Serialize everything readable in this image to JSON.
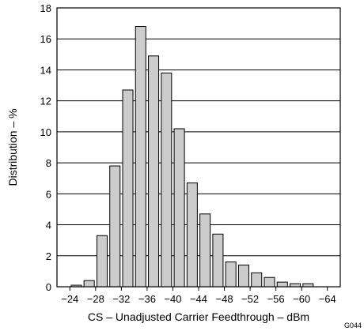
{
  "chart_data": {
    "type": "bar",
    "title": "",
    "xlabel": "CS – Unadjusted Carrier Feedthrough – dBm",
    "ylabel": "Distribution – %",
    "xlim": [
      -22,
      -66
    ],
    "ylim": [
      0,
      18
    ],
    "grid": "horizontal",
    "x_ticks": [
      -24,
      -28,
      -32,
      -36,
      -40,
      -44,
      -48,
      -52,
      -56,
      -60,
      -64
    ],
    "x_tick_labels": [
      "−24",
      "−28",
      "−32",
      "−36",
      "−40",
      "−44",
      "−48",
      "−52",
      "−56",
      "−60",
      "−64"
    ],
    "y_ticks": [
      0,
      2,
      4,
      6,
      8,
      10,
      12,
      14,
      16,
      18
    ],
    "y_tick_labels": [
      "0",
      "2",
      "4",
      "6",
      "8",
      "10",
      "12",
      "14",
      "16",
      "18"
    ],
    "bar_width": 1.6,
    "bar_color": "#cccccc",
    "series": [
      {
        "x": [
          -25,
          -27,
          -29,
          -31,
          -33,
          -35,
          -37,
          -39,
          -41,
          -43,
          -45,
          -47,
          -49,
          -51,
          -53,
          -55,
          -57,
          -59,
          -61
        ],
        "values": [
          0.1,
          0.4,
          3.3,
          7.8,
          12.7,
          16.8,
          14.9,
          13.8,
          10.2,
          6.7,
          4.7,
          3.4,
          1.6,
          1.4,
          0.9,
          0.6,
          0.3,
          0.2,
          0.2
        ]
      }
    ]
  },
  "figure_code": "G044"
}
